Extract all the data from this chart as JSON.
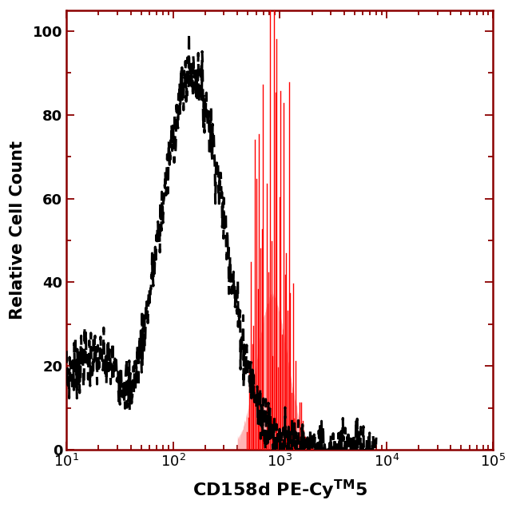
{
  "ylabel": "Relative Cell Count",
  "xlabel_base": "CD158d PE-Cy",
  "xlabel_super": "TM",
  "xlabel_end": "5",
  "xlim_log": [
    10,
    100000
  ],
  "ylim": [
    0,
    105
  ],
  "yticks": [
    0,
    20,
    40,
    60,
    80,
    100
  ],
  "xticks_log": [
    10,
    100,
    1000,
    10000,
    100000
  ],
  "bg_color": "#ffffff",
  "spine_color": "#8B0000",
  "black_color": "#000000",
  "red_fill_color": "#ffb3b3",
  "red_line_color": "#ff0000",
  "black_peak_log": 2.18,
  "black_sigma": 0.3,
  "black_peak_height": 90,
  "black_low_base_height": 22,
  "black_low_base_log": 1.25,
  "black_low_sigma": 0.38,
  "red_peak_log": 2.93,
  "red_sigma_fill": 0.14,
  "red_fill_height": 37,
  "red_sigma_spikes": 0.12,
  "red_spike_height": 100,
  "figsize": [
    6.46,
    6.41
  ],
  "dpi": 100
}
